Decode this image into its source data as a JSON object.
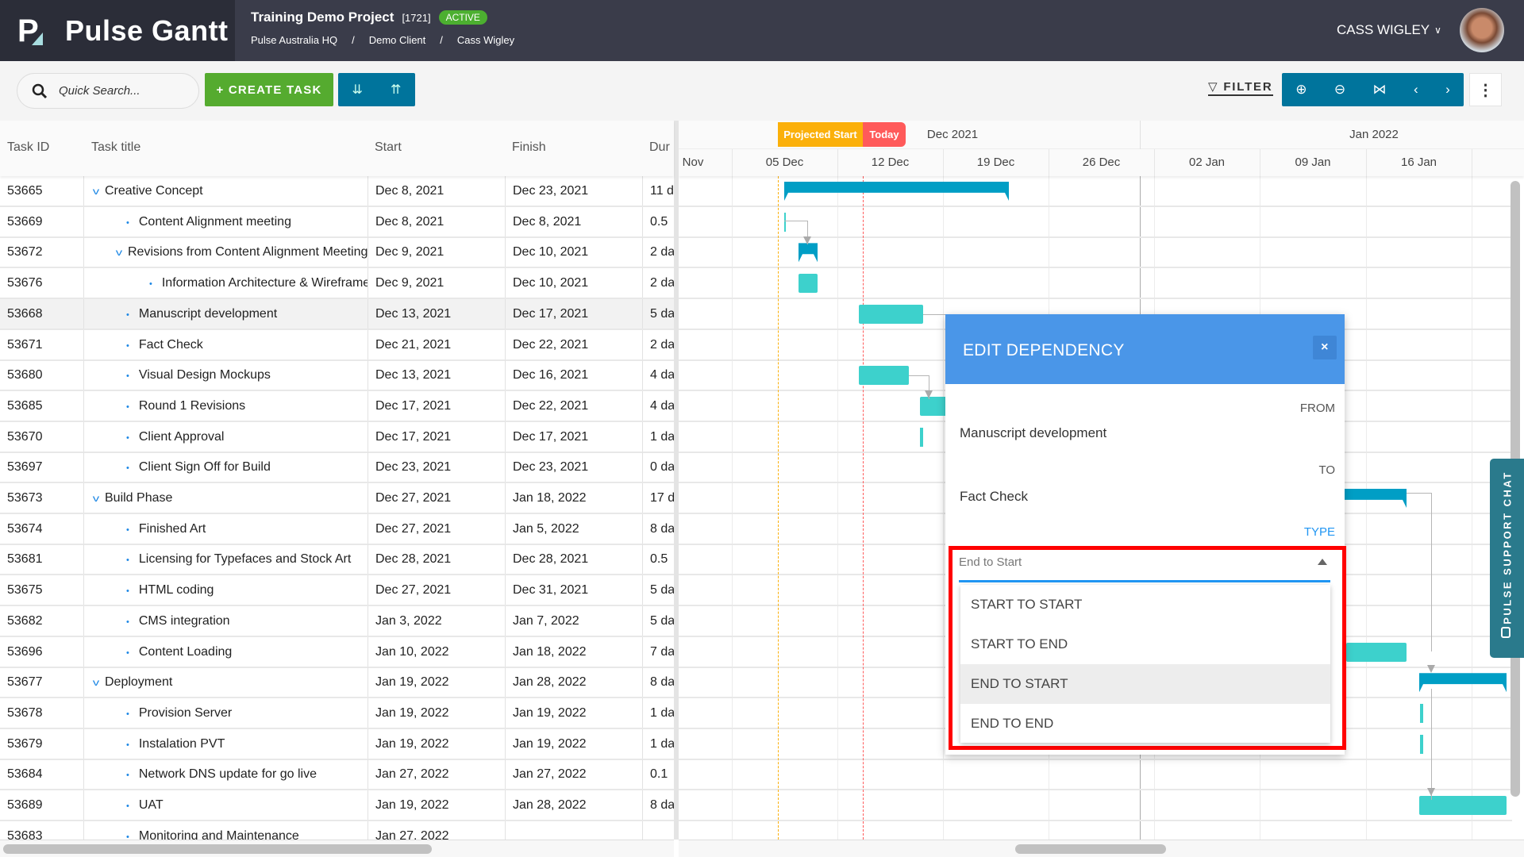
{
  "app": {
    "name": "Pulse Gantt"
  },
  "project": {
    "title": "Training Demo Project",
    "id": "[1721]",
    "status": "ACTIVE",
    "status_color": "#4caf30"
  },
  "breadcrumb": [
    "Pulse Australia HQ",
    "/",
    "Demo Client",
    "/",
    "Cass Wigley"
  ],
  "user": {
    "name": "CASS WIGLEY"
  },
  "toolbar": {
    "search_placeholder": "Quick Search...",
    "create_task": "+ CREATE TASK",
    "filter": "FILTER"
  },
  "grid": {
    "columns": [
      "Task ID",
      "Task title",
      "Start",
      "Finish",
      "Dur"
    ],
    "rows": [
      {
        "id": "53665",
        "title": "Creative Concept",
        "level": 0,
        "group": true,
        "start": "Dec 8, 2021",
        "finish": "Dec 23, 2021",
        "dur": "11 d"
      },
      {
        "id": "53669",
        "title": "Content Alignment meeting",
        "level": 1,
        "group": false,
        "start": "Dec 8, 2021",
        "finish": "Dec 8, 2021",
        "dur": "0.5"
      },
      {
        "id": "53672",
        "title": "Revisions from Content Alignment Meeting",
        "level": 1,
        "group": true,
        "start": "Dec 9, 2021",
        "finish": "Dec 10, 2021",
        "dur": "2 da"
      },
      {
        "id": "53676",
        "title": "Information Architecture & Wireframes",
        "level": 2,
        "group": false,
        "start": "Dec 9, 2021",
        "finish": "Dec 10, 2021",
        "dur": "2 da"
      },
      {
        "id": "53668",
        "title": "Manuscript development",
        "level": 1,
        "group": false,
        "start": "Dec 13, 2021",
        "finish": "Dec 17, 2021",
        "dur": "5 da",
        "selected": true
      },
      {
        "id": "53671",
        "title": "Fact Check",
        "level": 1,
        "group": false,
        "start": "Dec 21, 2021",
        "finish": "Dec 22, 2021",
        "dur": "2 da"
      },
      {
        "id": "53680",
        "title": "Visual Design Mockups",
        "level": 1,
        "group": false,
        "start": "Dec 13, 2021",
        "finish": "Dec 16, 2021",
        "dur": "4 da"
      },
      {
        "id": "53685",
        "title": "Round 1 Revisions",
        "level": 1,
        "group": false,
        "start": "Dec 17, 2021",
        "finish": "Dec 22, 2021",
        "dur": "4 da"
      },
      {
        "id": "53670",
        "title": "Client Approval",
        "level": 1,
        "group": false,
        "start": "Dec 17, 2021",
        "finish": "Dec 17, 2021",
        "dur": "1 da"
      },
      {
        "id": "53697",
        "title": "Client Sign Off for Build",
        "level": 1,
        "group": false,
        "start": "Dec 23, 2021",
        "finish": "Dec 23, 2021",
        "dur": "0 da"
      },
      {
        "id": "53673",
        "title": "Build Phase",
        "level": 0,
        "group": true,
        "start": "Dec 27, 2021",
        "finish": "Jan 18, 2022",
        "dur": "17 d"
      },
      {
        "id": "53674",
        "title": "Finished Art",
        "level": 1,
        "group": false,
        "start": "Dec 27, 2021",
        "finish": "Jan 5, 2022",
        "dur": "8 da"
      },
      {
        "id": "53681",
        "title": "Licensing for Typefaces and Stock Art",
        "level": 1,
        "group": false,
        "start": "Dec 28, 2021",
        "finish": "Dec 28, 2021",
        "dur": "0.5"
      },
      {
        "id": "53675",
        "title": "HTML coding",
        "level": 1,
        "group": false,
        "start": "Dec 27, 2021",
        "finish": "Dec 31, 2021",
        "dur": "5 da"
      },
      {
        "id": "53682",
        "title": "CMS integration",
        "level": 1,
        "group": false,
        "start": "Jan 3, 2022",
        "finish": "Jan 7, 2022",
        "dur": "5 da"
      },
      {
        "id": "53696",
        "title": "Content Loading",
        "level": 1,
        "group": false,
        "start": "Jan 10, 2022",
        "finish": "Jan 18, 2022",
        "dur": "7 da"
      },
      {
        "id": "53677",
        "title": "Deployment",
        "level": 0,
        "group": true,
        "start": "Jan 19, 2022",
        "finish": "Jan 28, 2022",
        "dur": "8 da"
      },
      {
        "id": "53678",
        "title": "Provision Server",
        "level": 1,
        "group": false,
        "start": "Jan 19, 2022",
        "finish": "Jan 19, 2022",
        "dur": "1 da"
      },
      {
        "id": "53679",
        "title": "Instalation PVT",
        "level": 1,
        "group": false,
        "start": "Jan 19, 2022",
        "finish": "Jan 19, 2022",
        "dur": "1 da"
      },
      {
        "id": "53684",
        "title": "Network DNS update for go live",
        "level": 1,
        "group": false,
        "start": "Jan 27, 2022",
        "finish": "Jan 27, 2022",
        "dur": "0.1"
      },
      {
        "id": "53689",
        "title": "UAT",
        "level": 1,
        "group": false,
        "start": "Jan 19, 2022",
        "finish": "Jan 28, 2022",
        "dur": "8 da"
      },
      {
        "id": "53683",
        "title": "Monitoring and Maintenance",
        "level": 1,
        "group": false,
        "start": "Jan 27, 2022",
        "finish": "",
        "dur": ""
      }
    ]
  },
  "timeline": {
    "months": [
      "Dec 2021",
      "Jan 2022"
    ],
    "weeks": [
      "Nov",
      "05 Dec",
      "12 Dec",
      "19 Dec",
      "26 Dec",
      "02 Jan",
      "09 Jan",
      "16 Jan"
    ],
    "projected_start_label": "Projected Start",
    "today_label": "Today",
    "colors": {
      "task": "#3dd1cc",
      "summary": "#009ec5",
      "projected": "#fbb00a",
      "today": "#ff5a5a"
    }
  },
  "dialog": {
    "title": "EDIT DEPENDENCY",
    "close": "×",
    "from_label": "FROM",
    "from_value": "Manuscript development",
    "to_label": "TO",
    "to_value": "Fact Check",
    "type_label": "TYPE",
    "type_value": "End to Start",
    "options": [
      "START TO START",
      "START TO END",
      "END TO START",
      "END TO END"
    ],
    "highlighted_option": "END TO START"
  },
  "support_chat": {
    "label": "PULSE SUPPORT CHAT"
  }
}
